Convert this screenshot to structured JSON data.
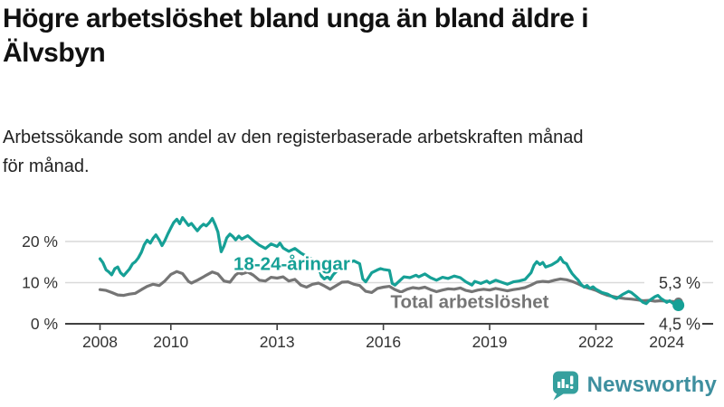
{
  "header": {
    "title_lines": [
      "Högre arbetslöshet bland unga än bland äldre i",
      "Älvsbyn"
    ],
    "subtitle_lines": [
      "Arbetssökande som andel av den registerbaserade arbetskraften månad",
      "för månad."
    ]
  },
  "footer": {
    "brand": "Newsworthy"
  },
  "colors": {
    "youth_line": "#16a096",
    "total_line": "#757575",
    "gridline": "#d9d9d9",
    "axis": "#404040",
    "tick_text": "#333333",
    "end_label_text": "#333333",
    "brand_teal": "#35a09e",
    "brand_text": "#3e8f9f",
    "background": "#ffffff"
  },
  "chart_data": {
    "type": "line",
    "title": "Högre arbetslöshet bland unga än bland äldre i Älvsbyn",
    "subtitle": "Arbetssökande som andel av den registerbaserade arbetskraften månad för månad.",
    "xlabel": "",
    "ylabel": "",
    "x_unit": "year (monthly data)",
    "y_unit": "%",
    "xlim": [
      2007.9,
      2024.9
    ],
    "ylim": [
      0,
      27
    ],
    "grid_y_values": [
      10,
      20
    ],
    "x_ticks": [
      2008,
      2010,
      2013,
      2016,
      2019,
      2022,
      2024
    ],
    "x_tick_labels": [
      "2008",
      "2010",
      "2013",
      "2016",
      "2019",
      "2022",
      "2024"
    ],
    "y_ticks": [
      0,
      10,
      20
    ],
    "y_tick_labels": [
      "0 %",
      "10 %",
      "20 %"
    ],
    "legend_position": "inline-labels",
    "series": [
      {
        "name": "Total arbetslöshet",
        "color": "#757575",
        "end_value": 5.3,
        "end_label": "5,3 %",
        "label_anchor": [
          2016.2,
          5.4
        ],
        "points": [
          [
            2008.0,
            8.3
          ],
          [
            2008.17,
            8.1
          ],
          [
            2008.33,
            7.6
          ],
          [
            2008.5,
            7.0
          ],
          [
            2008.67,
            6.9
          ],
          [
            2008.83,
            7.2
          ],
          [
            2009.0,
            7.4
          ],
          [
            2009.17,
            8.3
          ],
          [
            2009.33,
            9.1
          ],
          [
            2009.5,
            9.6
          ],
          [
            2009.67,
            9.3
          ],
          [
            2009.83,
            10.4
          ],
          [
            2010.0,
            12.0
          ],
          [
            2010.17,
            12.7
          ],
          [
            2010.33,
            12.2
          ],
          [
            2010.5,
            10.3
          ],
          [
            2010.58,
            9.9
          ],
          [
            2010.75,
            10.6
          ],
          [
            2010.92,
            11.4
          ],
          [
            2011.0,
            11.8
          ],
          [
            2011.17,
            12.6
          ],
          [
            2011.33,
            12.1
          ],
          [
            2011.5,
            10.4
          ],
          [
            2011.67,
            10.1
          ],
          [
            2011.83,
            11.9
          ],
          [
            2011.92,
            12.4
          ],
          [
            2012.0,
            12.1
          ],
          [
            2012.17,
            12.6
          ],
          [
            2012.33,
            11.8
          ],
          [
            2012.5,
            10.6
          ],
          [
            2012.67,
            10.4
          ],
          [
            2012.83,
            11.3
          ],
          [
            2013.0,
            11.1
          ],
          [
            2013.17,
            11.4
          ],
          [
            2013.33,
            10.4
          ],
          [
            2013.5,
            10.8
          ],
          [
            2013.67,
            9.4
          ],
          [
            2013.83,
            8.9
          ],
          [
            2014.0,
            9.6
          ],
          [
            2014.17,
            9.9
          ],
          [
            2014.33,
            9.2
          ],
          [
            2014.5,
            8.4
          ],
          [
            2014.67,
            9.3
          ],
          [
            2014.83,
            10.1
          ],
          [
            2015.0,
            10.2
          ],
          [
            2015.17,
            9.6
          ],
          [
            2015.33,
            9.3
          ],
          [
            2015.5,
            7.9
          ],
          [
            2015.67,
            7.6
          ],
          [
            2015.83,
            8.6
          ],
          [
            2016.0,
            8.9
          ],
          [
            2016.17,
            9.1
          ],
          [
            2016.33,
            8.3
          ],
          [
            2016.5,
            7.7
          ],
          [
            2016.67,
            8.4
          ],
          [
            2016.83,
            8.8
          ],
          [
            2017.0,
            8.6
          ],
          [
            2017.17,
            8.9
          ],
          [
            2017.33,
            8.3
          ],
          [
            2017.5,
            7.8
          ],
          [
            2017.67,
            8.2
          ],
          [
            2017.83,
            8.5
          ],
          [
            2018.0,
            8.4
          ],
          [
            2018.17,
            8.7
          ],
          [
            2018.33,
            8.1
          ],
          [
            2018.5,
            7.8
          ],
          [
            2018.67,
            8.2
          ],
          [
            2018.83,
            8.4
          ],
          [
            2019.0,
            8.2
          ],
          [
            2019.17,
            8.6
          ],
          [
            2019.33,
            8.3
          ],
          [
            2019.5,
            8.0
          ],
          [
            2019.67,
            8.3
          ],
          [
            2019.83,
            8.5
          ],
          [
            2020.0,
            8.8
          ],
          [
            2020.17,
            9.4
          ],
          [
            2020.33,
            10.1
          ],
          [
            2020.5,
            10.3
          ],
          [
            2020.67,
            10.2
          ],
          [
            2020.83,
            10.6
          ],
          [
            2021.0,
            10.9
          ],
          [
            2021.17,
            10.7
          ],
          [
            2021.33,
            10.3
          ],
          [
            2021.5,
            9.7
          ],
          [
            2021.67,
            9.0
          ],
          [
            2021.83,
            8.6
          ],
          [
            2022.0,
            8.1
          ],
          [
            2022.17,
            7.4
          ],
          [
            2022.33,
            6.9
          ],
          [
            2022.5,
            6.6
          ],
          [
            2022.67,
            6.3
          ],
          [
            2022.83,
            6.1
          ],
          [
            2023.0,
            6.0
          ],
          [
            2023.17,
            5.8
          ],
          [
            2023.33,
            5.6
          ],
          [
            2023.5,
            5.7
          ],
          [
            2023.67,
            5.5
          ],
          [
            2023.83,
            5.6
          ],
          [
            2024.0,
            5.5
          ],
          [
            2024.17,
            5.4
          ],
          [
            2024.33,
            5.3
          ]
        ]
      },
      {
        "name": "18-24-åringar",
        "color": "#16a096",
        "end_value": 4.5,
        "end_label": "4,5 %",
        "label_anchor": [
          2011.77,
          14.6
        ],
        "points": [
          [
            2008.0,
            15.8
          ],
          [
            2008.08,
            14.9
          ],
          [
            2008.17,
            13.1
          ],
          [
            2008.25,
            12.6
          ],
          [
            2008.33,
            11.9
          ],
          [
            2008.42,
            13.4
          ],
          [
            2008.5,
            13.8
          ],
          [
            2008.58,
            12.4
          ],
          [
            2008.67,
            11.7
          ],
          [
            2008.75,
            12.5
          ],
          [
            2008.83,
            13.3
          ],
          [
            2008.92,
            14.6
          ],
          [
            2009.0,
            15.1
          ],
          [
            2009.08,
            16.0
          ],
          [
            2009.17,
            17.4
          ],
          [
            2009.25,
            19.2
          ],
          [
            2009.33,
            20.3
          ],
          [
            2009.42,
            19.6
          ],
          [
            2009.5,
            20.8
          ],
          [
            2009.58,
            21.6
          ],
          [
            2009.67,
            20.4
          ],
          [
            2009.75,
            19.0
          ],
          [
            2009.83,
            20.2
          ],
          [
            2009.92,
            21.9
          ],
          [
            2010.0,
            23.3
          ],
          [
            2010.08,
            24.6
          ],
          [
            2010.17,
            25.4
          ],
          [
            2010.25,
            24.3
          ],
          [
            2010.33,
            25.8
          ],
          [
            2010.42,
            24.8
          ],
          [
            2010.5,
            23.9
          ],
          [
            2010.58,
            24.4
          ],
          [
            2010.67,
            23.4
          ],
          [
            2010.75,
            22.6
          ],
          [
            2010.83,
            23.5
          ],
          [
            2010.92,
            24.2
          ],
          [
            2011.0,
            23.8
          ],
          [
            2011.08,
            24.5
          ],
          [
            2011.17,
            25.6
          ],
          [
            2011.25,
            24.1
          ],
          [
            2011.33,
            22.3
          ],
          [
            2011.42,
            17.5
          ],
          [
            2011.5,
            18.9
          ],
          [
            2011.58,
            20.9
          ],
          [
            2011.67,
            21.8
          ],
          [
            2011.75,
            21.2
          ],
          [
            2011.83,
            20.4
          ],
          [
            2011.92,
            21.3
          ],
          [
            2012.0,
            20.6
          ],
          [
            2012.17,
            21.4
          ],
          [
            2012.33,
            20.2
          ],
          [
            2012.5,
            19.1
          ],
          [
            2012.67,
            18.3
          ],
          [
            2012.83,
            19.4
          ],
          [
            2013.0,
            18.8
          ],
          [
            2013.08,
            19.6
          ],
          [
            2013.17,
            18.4
          ],
          [
            2013.33,
            17.6
          ],
          [
            2013.5,
            18.3
          ],
          [
            2013.67,
            17.2
          ],
          [
            2013.83,
            16.4
          ],
          [
            2014.0,
            15.6
          ],
          [
            2014.17,
            13.9
          ],
          [
            2014.25,
            11.6
          ],
          [
            2014.33,
            10.9
          ],
          [
            2014.42,
            11.4
          ],
          [
            2014.5,
            10.8
          ],
          [
            2014.58,
            11.9
          ],
          [
            2014.75,
            13.4
          ],
          [
            2014.92,
            14.2
          ],
          [
            2015.0,
            14.8
          ],
          [
            2015.17,
            15.3
          ],
          [
            2015.33,
            14.6
          ],
          [
            2015.42,
            10.9
          ],
          [
            2015.5,
            10.2
          ],
          [
            2015.67,
            12.4
          ],
          [
            2015.83,
            13.1
          ],
          [
            2015.92,
            13.4
          ],
          [
            2016.0,
            13.2
          ],
          [
            2016.17,
            13.0
          ],
          [
            2016.25,
            9.8
          ],
          [
            2016.33,
            9.4
          ],
          [
            2016.5,
            10.8
          ],
          [
            2016.58,
            11.4
          ],
          [
            2016.75,
            11.2
          ],
          [
            2016.92,
            11.8
          ],
          [
            2017.0,
            11.4
          ],
          [
            2017.17,
            12.1
          ],
          [
            2017.33,
            11.2
          ],
          [
            2017.5,
            10.6
          ],
          [
            2017.67,
            11.3
          ],
          [
            2017.83,
            11.0
          ],
          [
            2018.0,
            11.6
          ],
          [
            2018.17,
            11.2
          ],
          [
            2018.33,
            10.2
          ],
          [
            2018.5,
            9.4
          ],
          [
            2018.58,
            10.3
          ],
          [
            2018.75,
            9.8
          ],
          [
            2018.92,
            10.4
          ],
          [
            2019.0,
            9.9
          ],
          [
            2019.17,
            10.6
          ],
          [
            2019.33,
            10.1
          ],
          [
            2019.5,
            9.6
          ],
          [
            2019.67,
            10.2
          ],
          [
            2019.83,
            10.4
          ],
          [
            2020.0,
            10.8
          ],
          [
            2020.17,
            12.4
          ],
          [
            2020.25,
            14.2
          ],
          [
            2020.33,
            15.1
          ],
          [
            2020.42,
            14.4
          ],
          [
            2020.5,
            14.9
          ],
          [
            2020.58,
            13.8
          ],
          [
            2020.75,
            14.3
          ],
          [
            2020.92,
            15.2
          ],
          [
            2021.0,
            16.1
          ],
          [
            2021.08,
            15.0
          ],
          [
            2021.17,
            14.6
          ],
          [
            2021.25,
            13.3
          ],
          [
            2021.33,
            12.2
          ],
          [
            2021.42,
            11.3
          ],
          [
            2021.5,
            10.6
          ],
          [
            2021.58,
            9.6
          ],
          [
            2021.67,
            8.9
          ],
          [
            2021.75,
            9.3
          ],
          [
            2021.83,
            8.6
          ],
          [
            2021.92,
            9.0
          ],
          [
            2022.0,
            8.4
          ],
          [
            2022.17,
            7.6
          ],
          [
            2022.33,
            7.2
          ],
          [
            2022.5,
            6.4
          ],
          [
            2022.58,
            6.1
          ],
          [
            2022.75,
            7.1
          ],
          [
            2022.92,
            7.9
          ],
          [
            2023.0,
            7.6
          ],
          [
            2023.17,
            6.4
          ],
          [
            2023.33,
            5.2
          ],
          [
            2023.42,
            4.9
          ],
          [
            2023.5,
            5.6
          ],
          [
            2023.67,
            6.6
          ],
          [
            2023.75,
            6.9
          ],
          [
            2023.83,
            6.2
          ],
          [
            2023.92,
            5.7
          ],
          [
            2024.0,
            5.2
          ],
          [
            2024.08,
            5.6
          ],
          [
            2024.17,
            5.0
          ],
          [
            2024.25,
            4.7
          ],
          [
            2024.33,
            4.5
          ]
        ]
      }
    ],
    "end_value_labels": [
      "5,3 %",
      "4,5 %"
    ]
  }
}
